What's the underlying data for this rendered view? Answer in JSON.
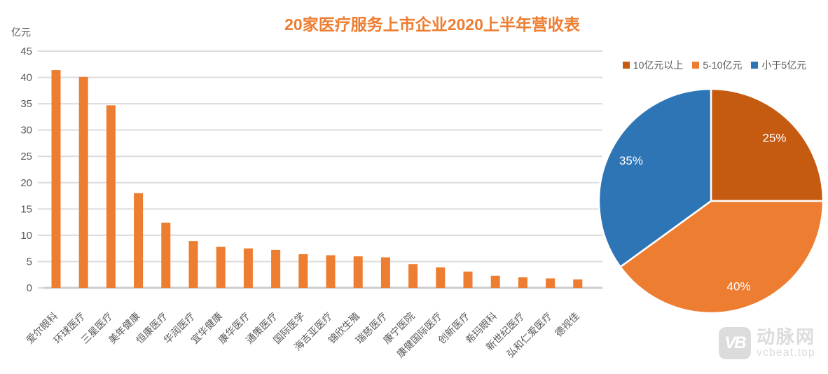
{
  "title": "20家医疗服务上市企业2020上半年营收表",
  "colors": {
    "title": "#ED7D31",
    "bar": "#ED7D31",
    "gridline": "#DCDCDC",
    "axis_line": "#CDCDCD",
    "axis_text": "#595959",
    "pie_label_text": "#FFFFFF",
    "watermark": "#DCDCDC"
  },
  "chart_data": [
    {
      "type": "bar",
      "title": "20家医疗服务上市企业2020上半年营收表",
      "ylabel": "亿元",
      "xlabel": "",
      "ylim": [
        0,
        45
      ],
      "yticks": [
        0,
        5,
        10,
        15,
        20,
        25,
        30,
        35,
        40,
        45
      ],
      "grid": true,
      "bar_color": "#ED7D31",
      "categories": [
        "爱尔眼科",
        "环球医疗",
        "三星医疗",
        "美年健康",
        "恒康医疗",
        "华润医疗",
        "宜华健康",
        "康华医疗",
        "通策医疗",
        "国际医学",
        "海吉亚医疗",
        "锦欣生殖",
        "瑞慈医疗",
        "康宁医院",
        "康健国际医疗",
        "创新医疗",
        "希玛眼科",
        "新世纪医疗",
        "弘和仁爱医疗",
        "德视佳"
      ],
      "values": [
        41.4,
        40.1,
        34.7,
        18.0,
        12.4,
        8.9,
        7.8,
        7.5,
        7.2,
        6.4,
        6.2,
        6.0,
        5.8,
        4.5,
        3.9,
        3.1,
        2.3,
        2.0,
        1.8,
        1.6
      ]
    },
    {
      "type": "pie",
      "legend_position": "top",
      "direction": "clockwise",
      "start_angle_deg": 0,
      "labels": [
        "10亿元以上",
        "5-10亿元",
        "小于5亿元"
      ],
      "values": [
        25,
        40,
        35
      ],
      "value_labels": [
        "25%",
        "40%",
        "35%"
      ],
      "slice_colors": [
        "#C55A11",
        "#ED7D31",
        "#2E75B6"
      ]
    }
  ],
  "watermark": {
    "logo_text": "VB",
    "brand": "动脉网",
    "url": "vcbeat.top"
  }
}
